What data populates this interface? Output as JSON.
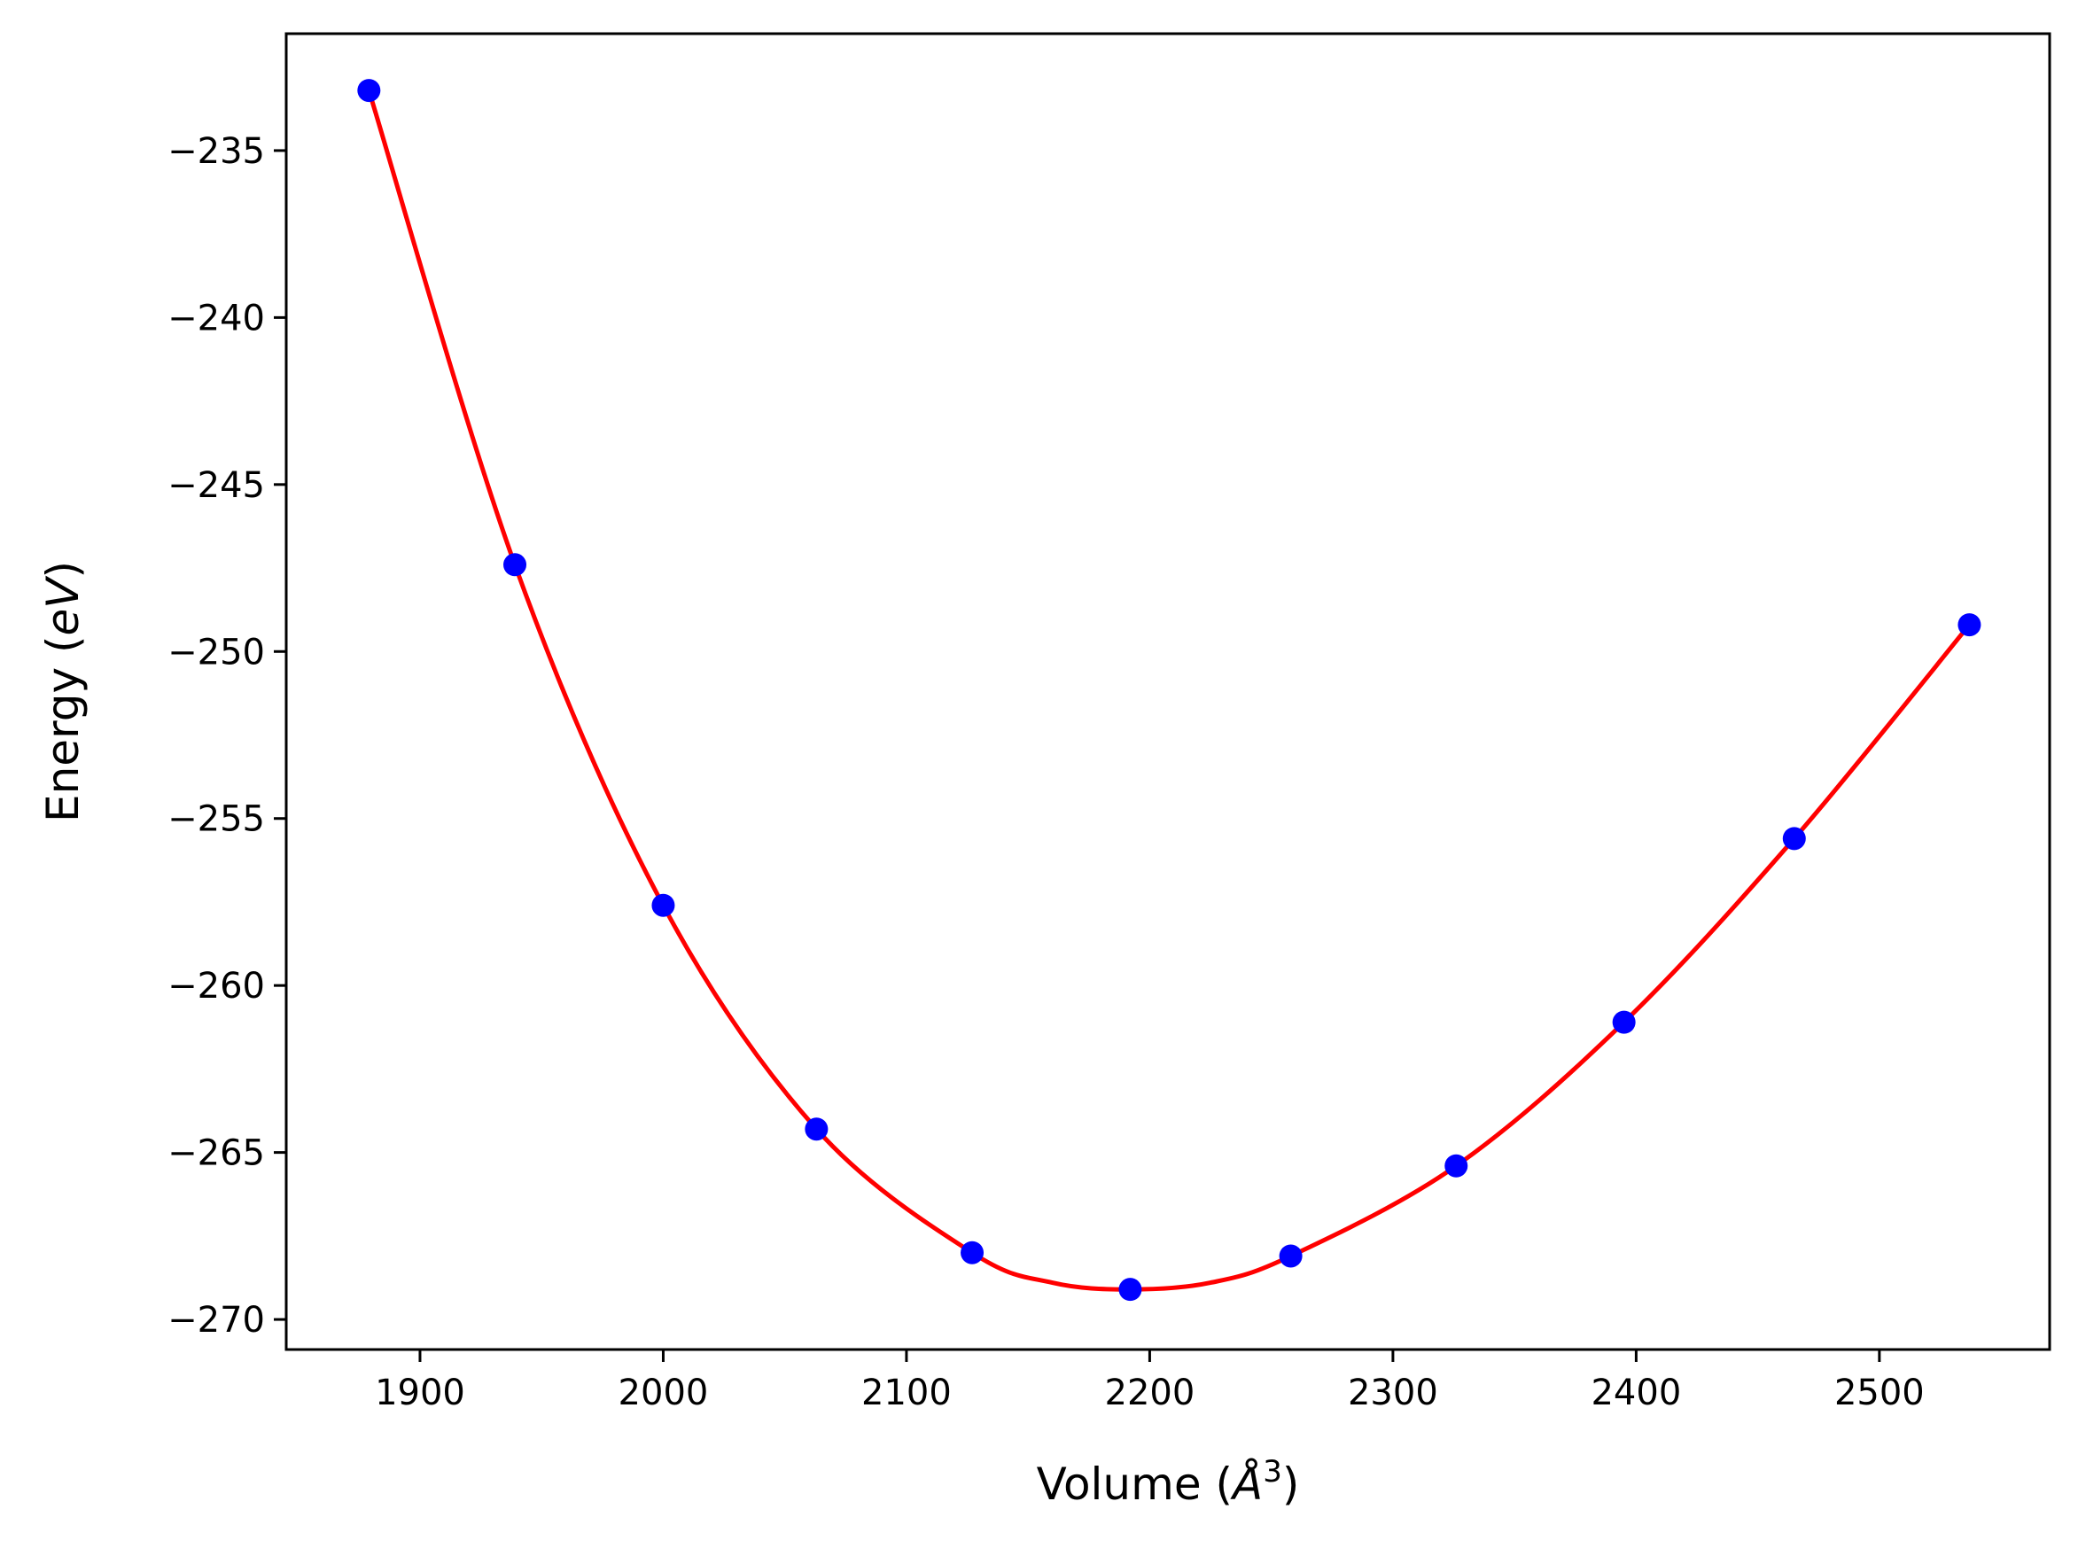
{
  "chart_data": {
    "type": "scatter",
    "title": "",
    "xlabel": "Volume (Å³)",
    "ylabel": "Energy (eV)",
    "xlabel_parts": {
      "prefix": "Volume (",
      "italic": "Å",
      "sup": "3",
      "suffix": ")"
    },
    "ylabel_parts": {
      "prefix": "Energy (",
      "italic": "eV",
      "suffix": ")"
    },
    "xlim": [
      1845,
      2570
    ],
    "ylim": [
      -270.9,
      -231.5
    ],
    "xticks": [
      1900,
      2000,
      2100,
      2200,
      2300,
      2400,
      2500
    ],
    "yticks": [
      -235,
      -240,
      -245,
      -250,
      -255,
      -260,
      -265,
      -270
    ],
    "xtick_labels": [
      "1900",
      "2000",
      "2100",
      "2200",
      "2300",
      "2400",
      "2500"
    ],
    "ytick_labels": [
      "−235",
      "−240",
      "−245",
      "−250",
      "−255",
      "−260",
      "−265",
      "−270"
    ],
    "grid": false,
    "series": [
      {
        "kind": "points",
        "color": "#0000ff",
        "x": [
          1879,
          1939,
          2000,
          2063,
          2127,
          2192,
          2258,
          2326,
          2395,
          2465,
          2537
        ],
        "y": [
          -233.2,
          -247.4,
          -257.6,
          -264.3,
          -268.0,
          -269.1,
          -268.1,
          -265.4,
          -261.1,
          -255.6,
          -249.2
        ]
      },
      {
        "kind": "fit-line",
        "color": "#ff0000",
        "x": [
          1879,
          1939,
          2000,
          2063,
          2127,
          2160,
          2192,
          2225,
          2258,
          2326,
          2395,
          2465,
          2537
        ],
        "y": [
          -233.2,
          -247.4,
          -257.6,
          -264.3,
          -268.0,
          -268.9,
          -269.1,
          -268.9,
          -268.1,
          -265.4,
          -261.1,
          -255.6,
          -249.2
        ]
      }
    ]
  }
}
